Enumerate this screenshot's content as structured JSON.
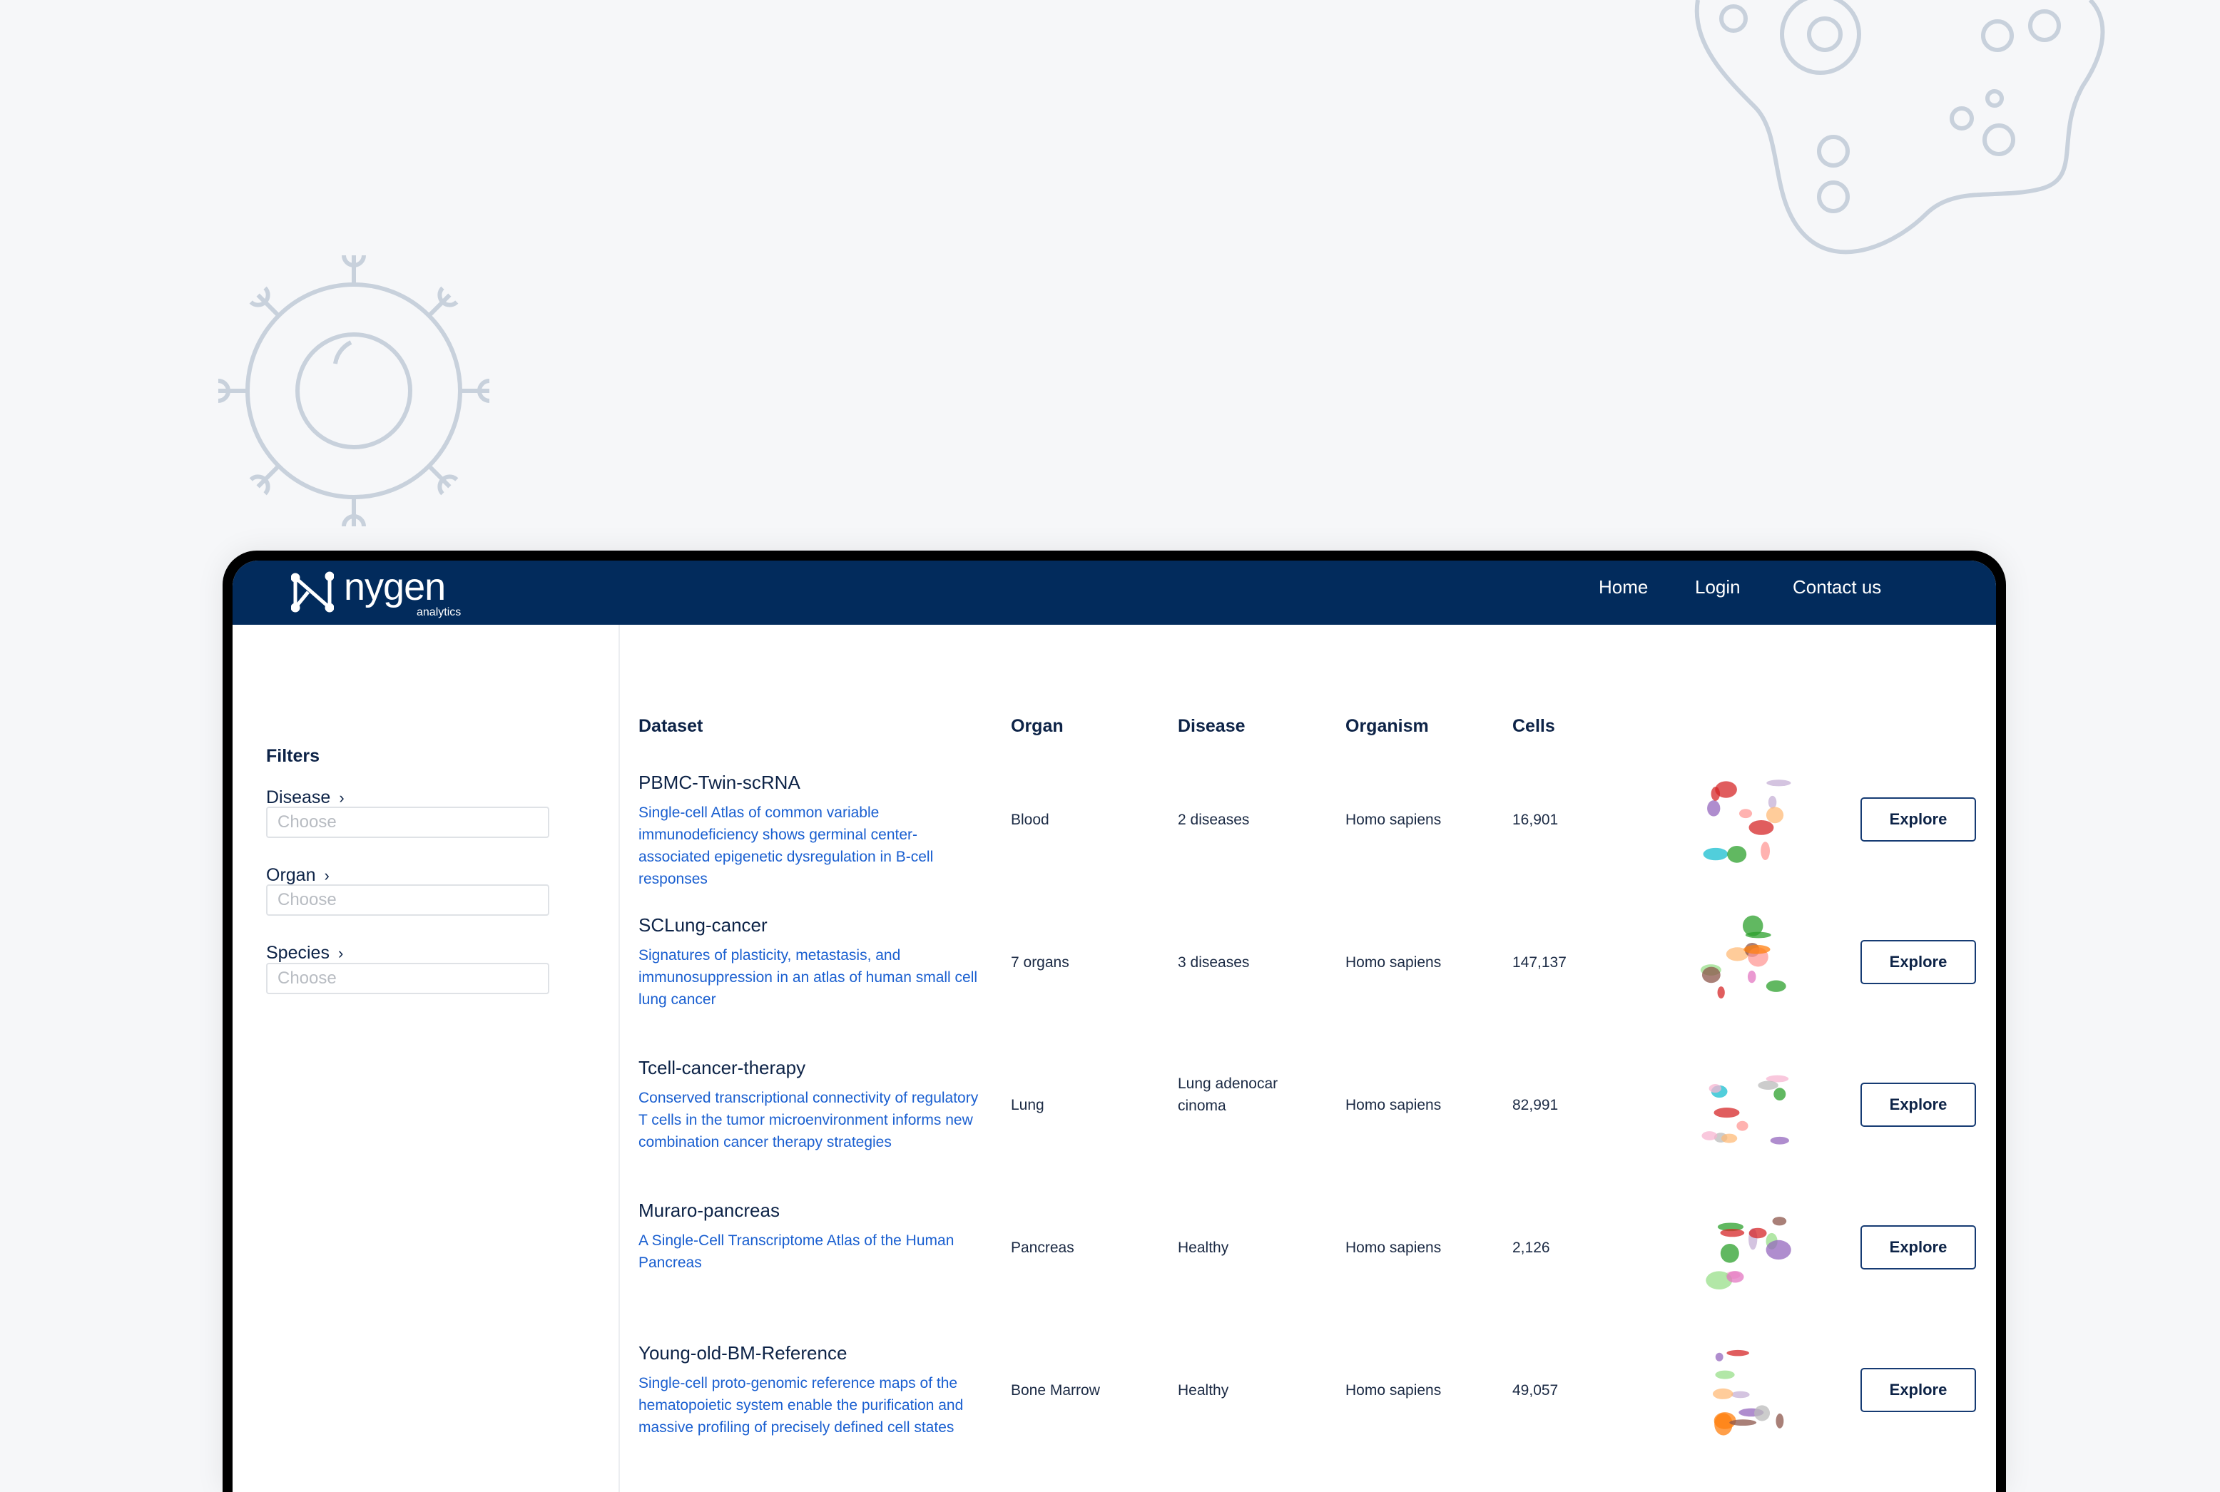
{
  "header": {
    "logo_text": "nygen",
    "logo_subtext": "analytics",
    "nav": [
      "Home",
      "Login",
      "Contact us"
    ],
    "background_color": "#022b5c"
  },
  "sidebar": {
    "title": "Filters",
    "filters": [
      {
        "label": "Disease",
        "placeholder": "Choose"
      },
      {
        "label": "Organ",
        "placeholder": "Choose"
      },
      {
        "label": "Species",
        "placeholder": "Choose"
      }
    ]
  },
  "table": {
    "columns": [
      "Dataset",
      "Organ",
      "Disease",
      "Organism",
      "Cells"
    ],
    "rows": [
      {
        "name": "PBMC-Twin-scRNA",
        "description": "Single-cell Atlas of common variable immunodeficiency shows germinal center-associated epigenetic dysregulation in B-cell responses",
        "organ": "Blood",
        "disease": "2 diseases",
        "organism": "Homo sapiens",
        "cells": "16,901",
        "action": "Explore"
      },
      {
        "name": "SCLung-cancer",
        "description": "Signatures of plasticity, metastasis, and immunosuppression in an atlas of human small cell lung cancer",
        "organ": "7 organs",
        "disease": "3 diseases",
        "organism": "Homo sapiens",
        "cells": "147,137",
        "action": "Explore"
      },
      {
        "name": "Tcell-cancer-therapy",
        "description": "Conserved transcriptional connectivity of regulatory T cells in the tumor microenvironment informs new combination cancer therapy strategies",
        "organ": "Lung",
        "disease": "Lung adenocarcinoma",
        "organism": "Homo sapiens",
        "cells": "82,991",
        "action": "Explore"
      },
      {
        "name": "Muraro-pancreas",
        "description": "A Single-Cell Transcriptome Atlas of the Human Pancreas",
        "organ": "Pancreas",
        "disease": "Healthy",
        "organism": "Homo sapiens",
        "cells": "2,126",
        "action": "Explore"
      },
      {
        "name": "Young-old-BM-Reference",
        "description": "Single-cell proto-genomic reference maps of the hematopoietic system enable the purification and massive profiling of precisely defined cell states",
        "organ": "Bone Marrow",
        "disease": "Healthy",
        "organism": "Homo sapiens",
        "cells": "49,057",
        "action": "Explore"
      }
    ]
  },
  "colors": {
    "link": "#1a5fd0",
    "text": "#0d2347",
    "decoration": "#c8d1dc"
  }
}
